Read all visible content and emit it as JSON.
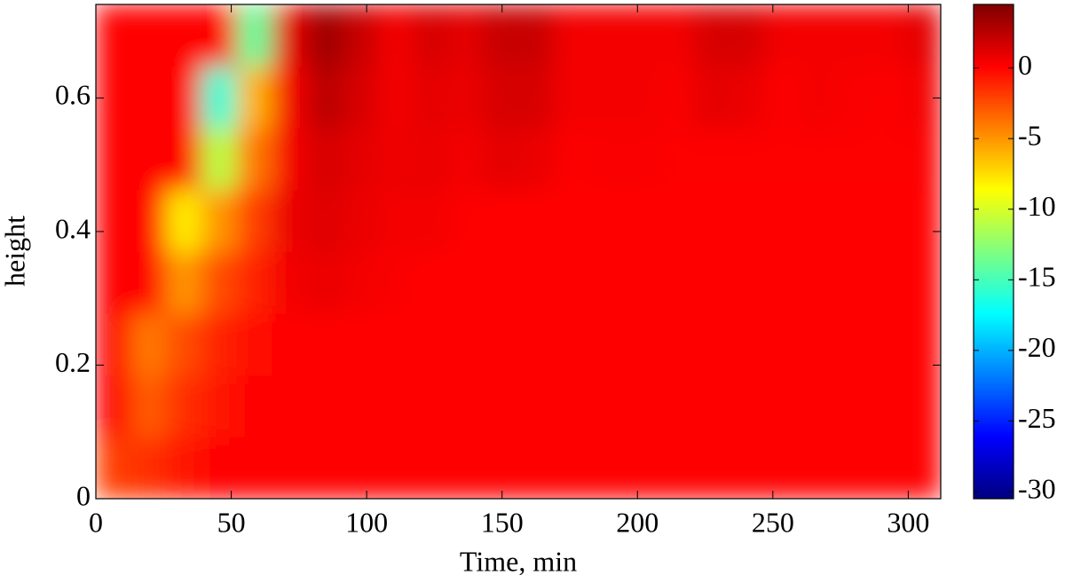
{
  "chart_data": {
    "type": "heatmap",
    "xlabel": "Time, min",
    "ylabel": "height",
    "xlim": [
      0,
      312
    ],
    "ylim": [
      0,
      0.74
    ],
    "xticks": [
      0,
      50,
      100,
      150,
      200,
      250,
      300
    ],
    "yticks": [
      0,
      0.2,
      0.4,
      0.6
    ],
    "xbins": [
      0,
      13,
      26,
      39,
      52,
      65,
      78,
      91,
      104,
      117,
      130,
      143,
      156,
      169,
      182,
      195,
      208,
      221,
      234,
      247,
      260,
      273,
      286,
      299,
      312
    ],
    "ybins": [
      0,
      0.0925,
      0.185,
      0.2775,
      0.37,
      0.4625,
      0.555,
      0.6475,
      0.74
    ],
    "z": [
      [
        -2,
        -1.5,
        -0.5,
        0,
        0,
        0,
        0,
        0,
        0,
        0,
        0,
        0,
        0,
        0,
        0,
        0,
        0,
        0,
        0,
        0,
        0,
        0,
        0,
        0
      ],
      [
        0,
        -3,
        -1.5,
        -0.5,
        0,
        0,
        0,
        0,
        0,
        0,
        0,
        0,
        0,
        0,
        0,
        0,
        0,
        0,
        0,
        0,
        0,
        0,
        0,
        0
      ],
      [
        0,
        -4,
        -2.5,
        -1,
        -0.3,
        0,
        0,
        0,
        0,
        0,
        0,
        0,
        0,
        0,
        0,
        0,
        0,
        0,
        0,
        0,
        0,
        0,
        0,
        0
      ],
      [
        0,
        0,
        -5,
        -2.5,
        -1,
        0.5,
        0.8,
        0.5,
        0.3,
        0,
        0,
        0,
        0,
        0,
        0,
        0,
        0,
        0,
        0,
        0,
        0,
        0,
        0,
        0
      ],
      [
        0,
        0,
        -8,
        -5,
        -2,
        0.8,
        1.2,
        0.8,
        0.5,
        0.5,
        0.2,
        0,
        0,
        0,
        0,
        0,
        0,
        0,
        0,
        0,
        0,
        0,
        0,
        0
      ],
      [
        0,
        0,
        0,
        -11,
        -4,
        0.5,
        1.5,
        1,
        0.7,
        0.8,
        0.5,
        1,
        0.8,
        0.2,
        0.3,
        0.3,
        0.2,
        0.2,
        0.2,
        0.2,
        0.2,
        0.2,
        0.2,
        0.2
      ],
      [
        0,
        0,
        0,
        -16,
        -6,
        0.5,
        2.5,
        1.5,
        0.5,
        1,
        0.8,
        1.5,
        1.5,
        0.5,
        0.5,
        0.5,
        0.3,
        1,
        0.8,
        0.2,
        0.5,
        0.3,
        0.2,
        0.5
      ],
      [
        0,
        0,
        0,
        0,
        -14,
        1,
        3.5,
        2,
        0.5,
        1.5,
        1,
        2,
        2,
        0.5,
        0.5,
        0.5,
        0.5,
        1.5,
        1.5,
        0.5,
        0.5,
        0.5,
        0.5,
        1
      ]
    ],
    "colorbar": {
      "colormap": "jet",
      "clim": [
        -30.5,
        4.5
      ],
      "ticks": [
        -30,
        -25,
        -20,
        -15,
        -10,
        -5,
        0
      ]
    }
  }
}
